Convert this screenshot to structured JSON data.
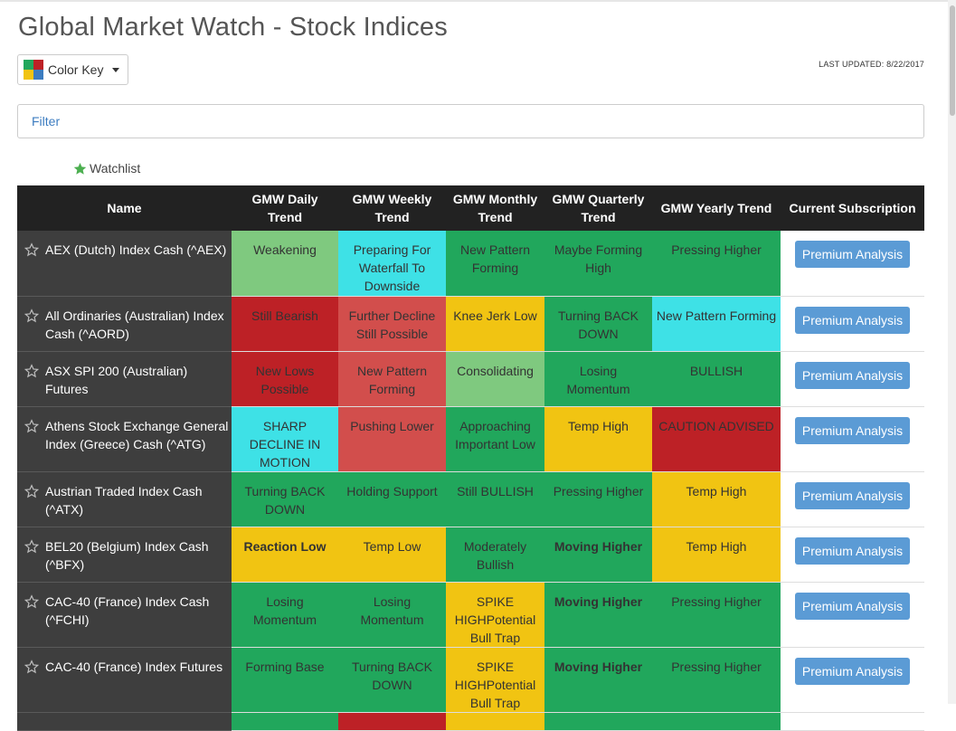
{
  "page": {
    "title": "Global Market Watch - Stock Indices",
    "color_key_label": "Color Key",
    "last_updated": "LAST UPDATED: 8/22/2017",
    "filter_placeholder": "Filter",
    "watchlist_label": "Watchlist"
  },
  "colors": {
    "light_green": "#7fc97f",
    "green": "#21a75c",
    "cyan": "#3ee1e6",
    "yellow": "#f1c412",
    "light_red": "#d24e4c",
    "red": "#bd2126",
    "name_bg": "#3e3e3e",
    "header_bg": "#222222",
    "button": "#5b9bd5"
  },
  "columns": [
    "Name",
    "GMW Daily Trend",
    "GMW Weekly Trend",
    "GMW Monthly Trend",
    "GMW Quarterly Trend",
    "GMW Yearly Trend",
    "Current Subscription"
  ],
  "rows": [
    {
      "name": "AEX (Dutch) Index Cash (^AEX)",
      "cells": [
        {
          "text": "Weakening",
          "color": "light_green",
          "bold": false
        },
        {
          "text": "Preparing For Waterfall To Downside",
          "color": "cyan",
          "bold": false
        },
        {
          "text": "New Pattern Forming",
          "color": "green",
          "bold": false
        },
        {
          "text": "Maybe Forming High",
          "color": "green",
          "bold": false
        },
        {
          "text": "Pressing Higher",
          "color": "green",
          "bold": false
        }
      ],
      "subscription": "Premium Analysis"
    },
    {
      "name": "All Ordinaries (Australian) Index Cash (^AORD)",
      "cells": [
        {
          "text": "Still Bearish",
          "color": "red",
          "bold": false
        },
        {
          "text": "Further Decline Still Possible",
          "color": "light_red",
          "bold": false
        },
        {
          "text": "Knee Jerk Low",
          "color": "yellow",
          "bold": false
        },
        {
          "text": "Turning BACK DOWN",
          "color": "green",
          "bold": false
        },
        {
          "text": "New Pattern Forming",
          "color": "cyan",
          "bold": false
        }
      ],
      "subscription": "Premium Analysis"
    },
    {
      "name": "ASX SPI 200 (Australian) Futures",
      "cells": [
        {
          "text": "New Lows Possible",
          "color": "red",
          "bold": false
        },
        {
          "text": "New Pattern Forming",
          "color": "light_red",
          "bold": false
        },
        {
          "text": "Consolidating",
          "color": "light_green",
          "bold": false
        },
        {
          "text": "Losing Momentum",
          "color": "green",
          "bold": false
        },
        {
          "text": "BULLISH",
          "color": "green",
          "bold": false
        }
      ],
      "subscription": "Premium Analysis"
    },
    {
      "name": "Athens Stock Exchange General Index (Greece) Cash (^ATG)",
      "cells": [
        {
          "text": "SHARP DECLINE IN MOTION",
          "color": "cyan",
          "bold": false
        },
        {
          "text": "Pushing Lower",
          "color": "light_red",
          "bold": false
        },
        {
          "text": "Approaching Important Low",
          "color": "green",
          "bold": false
        },
        {
          "text": "Temp High",
          "color": "yellow",
          "bold": false
        },
        {
          "text": "CAUTION ADVISED",
          "color": "red",
          "bold": false
        }
      ],
      "subscription": "Premium Analysis"
    },
    {
      "name": "Austrian Traded Index Cash (^ATX)",
      "cells": [
        {
          "text": "Turning BACK DOWN",
          "color": "green",
          "bold": false
        },
        {
          "text": "Holding Support",
          "color": "green",
          "bold": false
        },
        {
          "text": "Still BULLISH",
          "color": "green",
          "bold": false
        },
        {
          "text": "Pressing Higher",
          "color": "green",
          "bold": false
        },
        {
          "text": "Temp High",
          "color": "yellow",
          "bold": false
        }
      ],
      "subscription": "Premium Analysis"
    },
    {
      "name": "BEL20 (Belgium) Index Cash (^BFX)",
      "cells": [
        {
          "text": "Reaction Low",
          "color": "yellow",
          "bold": true
        },
        {
          "text": "Temp Low",
          "color": "yellow",
          "bold": false
        },
        {
          "text": "Moderately Bullish",
          "color": "green",
          "bold": false
        },
        {
          "text": "Moving Higher",
          "color": "green",
          "bold": true
        },
        {
          "text": "Temp High",
          "color": "yellow",
          "bold": false
        }
      ],
      "subscription": "Premium Analysis"
    },
    {
      "name": "CAC-40 (France) Index Cash (^FCHI)",
      "cells": [
        {
          "text": "Losing Momentum",
          "color": "green",
          "bold": false
        },
        {
          "text": "Losing Momentum",
          "color": "green",
          "bold": false
        },
        {
          "text": "SPIKE HIGHPotential Bull Trap",
          "color": "yellow",
          "bold": false
        },
        {
          "text": "Moving Higher",
          "color": "green",
          "bold": true
        },
        {
          "text": "Pressing Higher",
          "color": "green",
          "bold": false
        }
      ],
      "subscription": "Premium Analysis"
    },
    {
      "name": "CAC-40 (France) Index Futures",
      "cells": [
        {
          "text": "Forming Base",
          "color": "green",
          "bold": false
        },
        {
          "text": "Turning BACK DOWN",
          "color": "green",
          "bold": false
        },
        {
          "text": "SPIKE HIGHPotential Bull Trap",
          "color": "yellow",
          "bold": false
        },
        {
          "text": "Moving Higher",
          "color": "green",
          "bold": true
        },
        {
          "text": "Pressing Higher",
          "color": "green",
          "bold": false
        }
      ],
      "subscription": "Premium Analysis"
    },
    {
      "name": "",
      "cells": [
        {
          "text": "",
          "color": "green",
          "bold": false
        },
        {
          "text": "",
          "color": "red",
          "bold": false
        },
        {
          "text": "",
          "color": "yellow",
          "bold": false
        },
        {
          "text": "",
          "color": "green",
          "bold": false
        },
        {
          "text": "",
          "color": "green",
          "bold": false
        }
      ],
      "subscription": ""
    }
  ]
}
